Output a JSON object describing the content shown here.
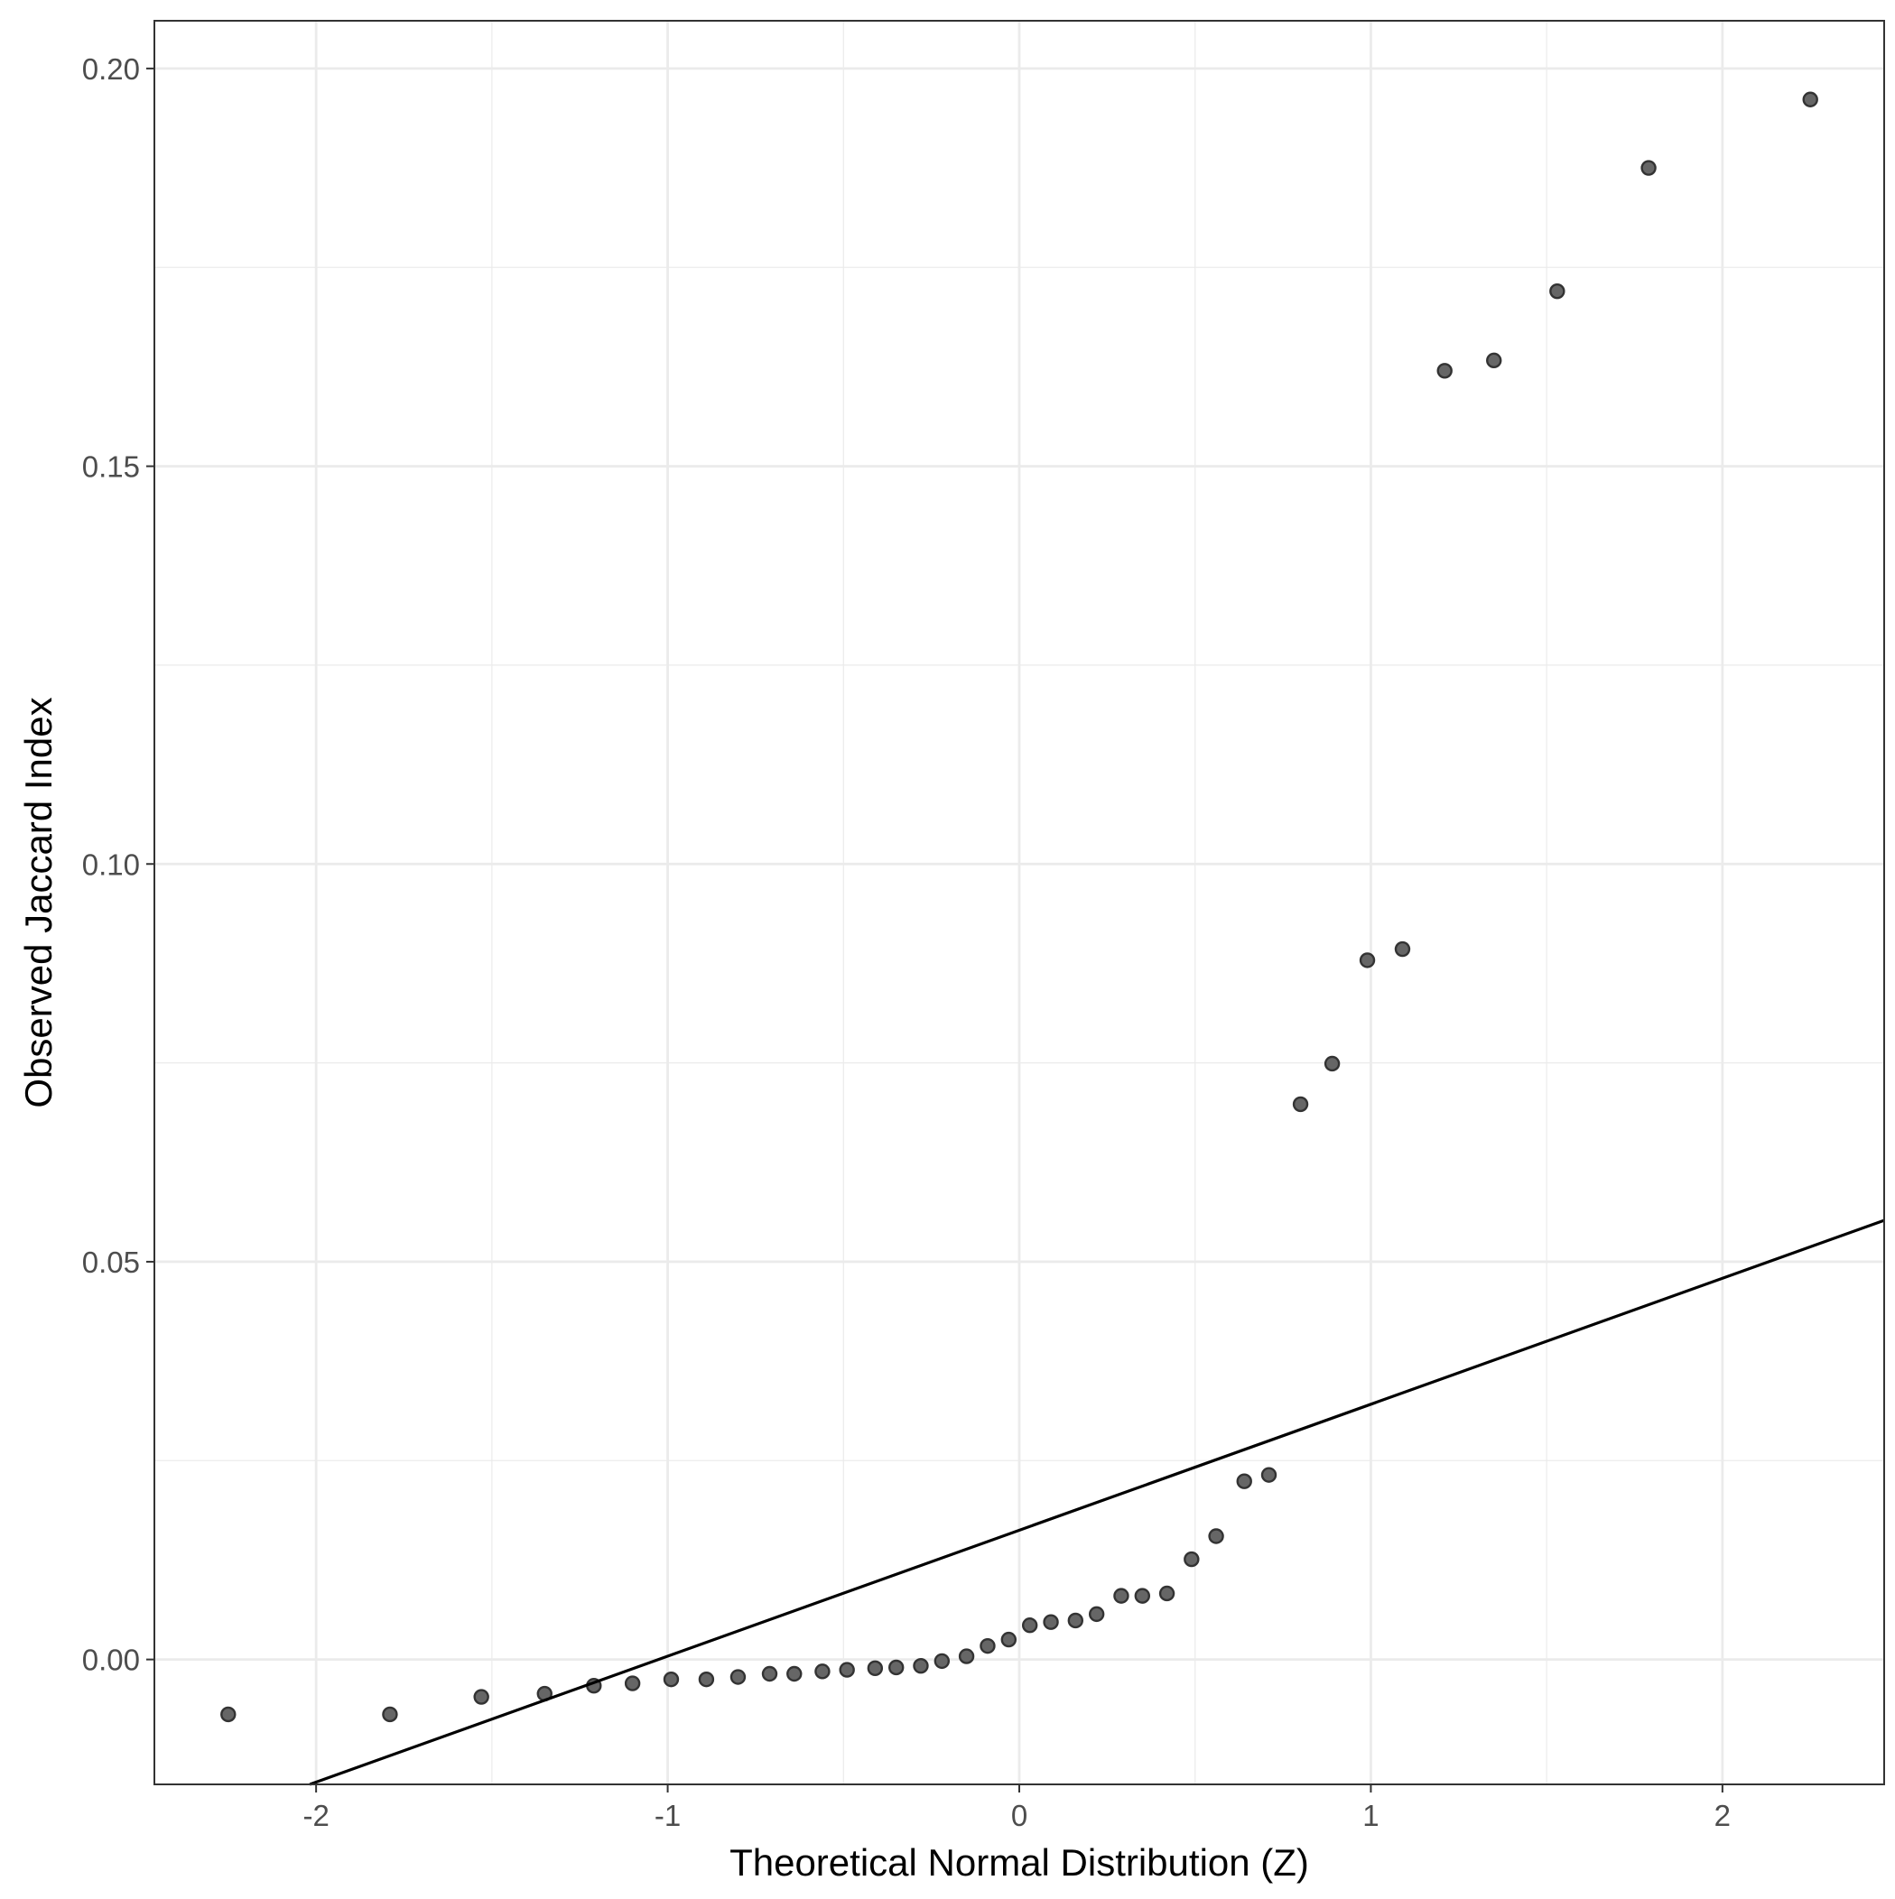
{
  "chart_data": {
    "type": "scatter",
    "title": "",
    "xlabel": "Theoretical Normal Distribution (Z)",
    "ylabel": "Observed Jaccard Index",
    "xlim": [
      -2.46,
      2.46
    ],
    "ylim": [
      -0.0157,
      0.206
    ],
    "x_ticks": [
      {
        "value": -2,
        "label": "-2"
      },
      {
        "value": -1,
        "label": "-1"
      },
      {
        "value": 0,
        "label": "0"
      },
      {
        "value": 1,
        "label": "1"
      },
      {
        "value": 2,
        "label": "2"
      }
    ],
    "x_minor_ticks": [
      -1.5,
      -0.5,
      0.5,
      1.5
    ],
    "y_ticks": [
      {
        "value": 0.0,
        "label": "0.00"
      },
      {
        "value": 0.05,
        "label": "0.05"
      },
      {
        "value": 0.1,
        "label": "0.10"
      },
      {
        "value": 0.15,
        "label": "0.15"
      },
      {
        "value": 0.2,
        "label": "0.20"
      }
    ],
    "y_minor_ticks": [
      0.025,
      0.075,
      0.125,
      0.175
    ],
    "grid": true,
    "theme": "bw",
    "point_color": "#666666",
    "point_stroke": "#333333",
    "line_color": "#000000",
    "reference_line": {
      "x": [
        -2.46,
        2.46
      ],
      "y": [
        -0.0227,
        0.0552
      ]
    },
    "series": [
      {
        "x": [
          -2.25,
          -1.79,
          -1.53,
          -1.35,
          -1.21,
          -1.1,
          -0.99,
          -0.89,
          -0.8,
          -0.71,
          -0.64,
          -0.56,
          -0.49,
          -0.41,
          -0.35,
          -0.28,
          -0.22,
          -0.15,
          -0.09,
          -0.03,
          0.03,
          0.09,
          0.16,
          0.22,
          0.29,
          0.35,
          0.42,
          0.49,
          0.56,
          0.64,
          0.71,
          0.8,
          0.89,
          0.99,
          1.09,
          1.21,
          1.35,
          1.53,
          1.79,
          2.25
        ],
        "y": [
          -0.0069,
          -0.0069,
          -0.0047,
          -0.0043,
          -0.0033,
          -0.003,
          -0.0025,
          -0.0025,
          -0.0022,
          -0.0018,
          -0.0018,
          -0.0015,
          -0.0013,
          -0.0011,
          -0.001,
          -0.0008,
          -0.0002,
          0.0004,
          0.0017,
          0.0025,
          0.0043,
          0.0047,
          0.0049,
          0.0057,
          0.008,
          0.008,
          0.0083,
          0.0126,
          0.0155,
          0.0224,
          0.0232,
          0.0698,
          0.0749,
          0.0879,
          0.0893,
          0.162,
          0.1633,
          0.172,
          0.1875,
          0.1961
        ]
      }
    ]
  }
}
